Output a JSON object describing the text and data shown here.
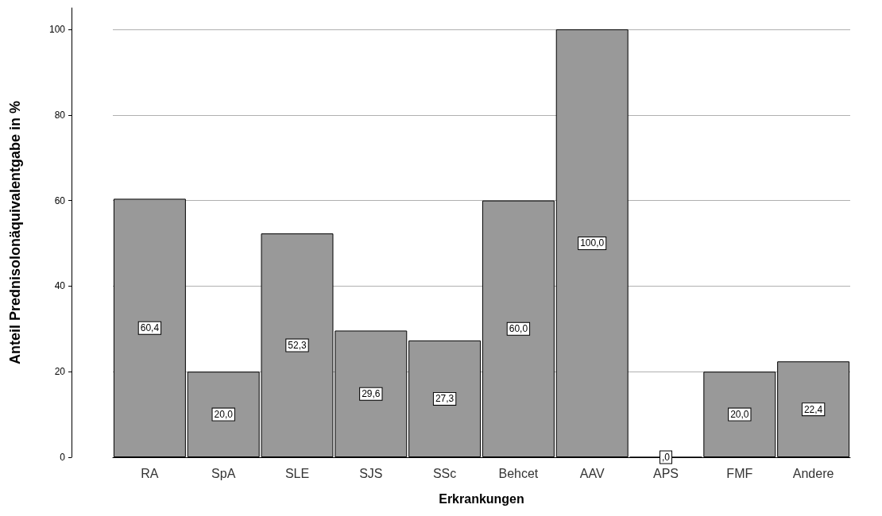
{
  "chart_data": {
    "type": "bar",
    "xlabel": "Erkrankungen",
    "ylabel": "Anteil Prednisolonäquivalentgabe in %",
    "categories": [
      "RA",
      "SpA",
      "SLE",
      "SJS",
      "SSc",
      "Behcet",
      "AAV",
      "APS",
      "FMF",
      "Andere"
    ],
    "values": [
      60.4,
      20.0,
      52.3,
      29.6,
      27.3,
      60.0,
      100.0,
      0,
      20.0,
      22.4
    ],
    "value_labels": [
      "60,4",
      "20,0",
      "52,3",
      "29,6",
      "27,3",
      "60,0",
      "100,0",
      ",0",
      "20,0",
      "22,4"
    ],
    "color": "#999999",
    "ylim": [
      0,
      105
    ],
    "yticks": [
      0,
      20,
      40,
      60,
      80,
      100
    ],
    "grid": "y"
  }
}
